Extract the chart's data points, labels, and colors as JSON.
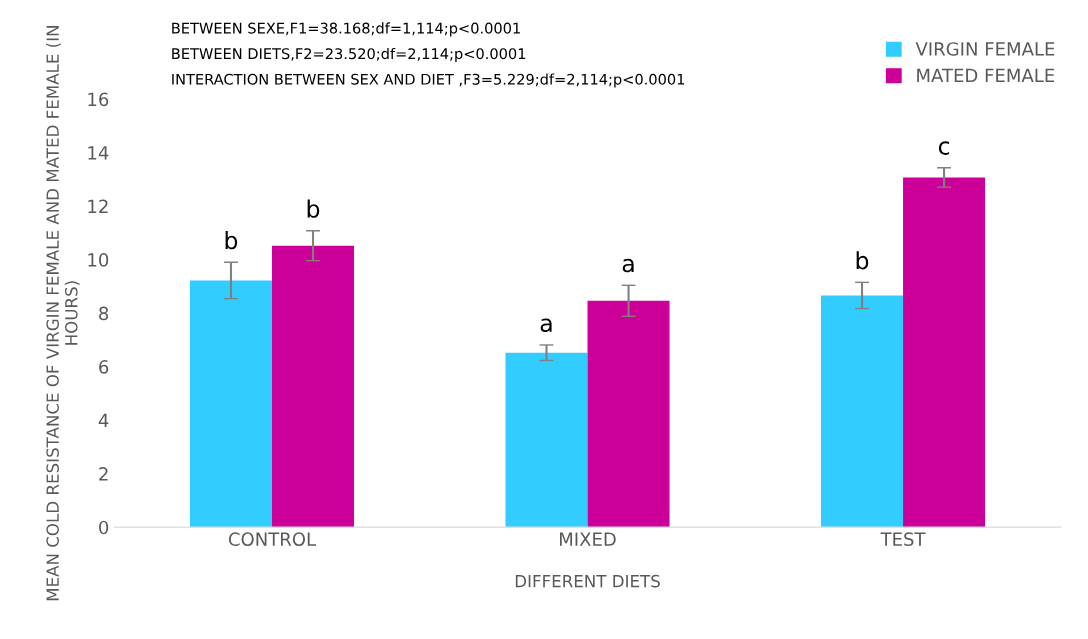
{
  "chart_data": {
    "type": "bar",
    "xlabel": "DIFFERENT DIETS",
    "ylabel": "MEAN COLD RESISTANCE OF VIRGIN FEMALE AND MATED FEMALE (IN HOURS)",
    "categories": [
      "CONTROL",
      "MIXED",
      "TEST"
    ],
    "series": [
      {
        "name": "VIRGIN FEMALE",
        "color": "#33ccff",
        "values": [
          9.22,
          6.52,
          8.66
        ],
        "errors": [
          0.68,
          0.29,
          0.49
        ],
        "value_labels": [
          "b",
          "a",
          "b"
        ]
      },
      {
        "name": "MATED FEMALE",
        "color": "#cc0099",
        "values": [
          10.52,
          8.46,
          13.07
        ],
        "errors": [
          0.56,
          0.58,
          0.36
        ],
        "value_labels": [
          "b",
          "a",
          "c"
        ]
      }
    ],
    "ylim": [
      0,
      16
    ],
    "yticks": [
      0,
      2,
      4,
      6,
      8,
      10,
      12,
      14,
      16
    ],
    "grid": false,
    "legend": "top right",
    "annotations": [
      "BETWEEN SEXE,F1=38.168;df=1,114;p<0.0001",
      "BETWEEN DIETS,F2=23.520;df=2,114;p<0.0001",
      "INTERACTION BETWEEN SEX AND DIET ,F3=5.229;df=2,114;p<0.0001"
    ]
  }
}
